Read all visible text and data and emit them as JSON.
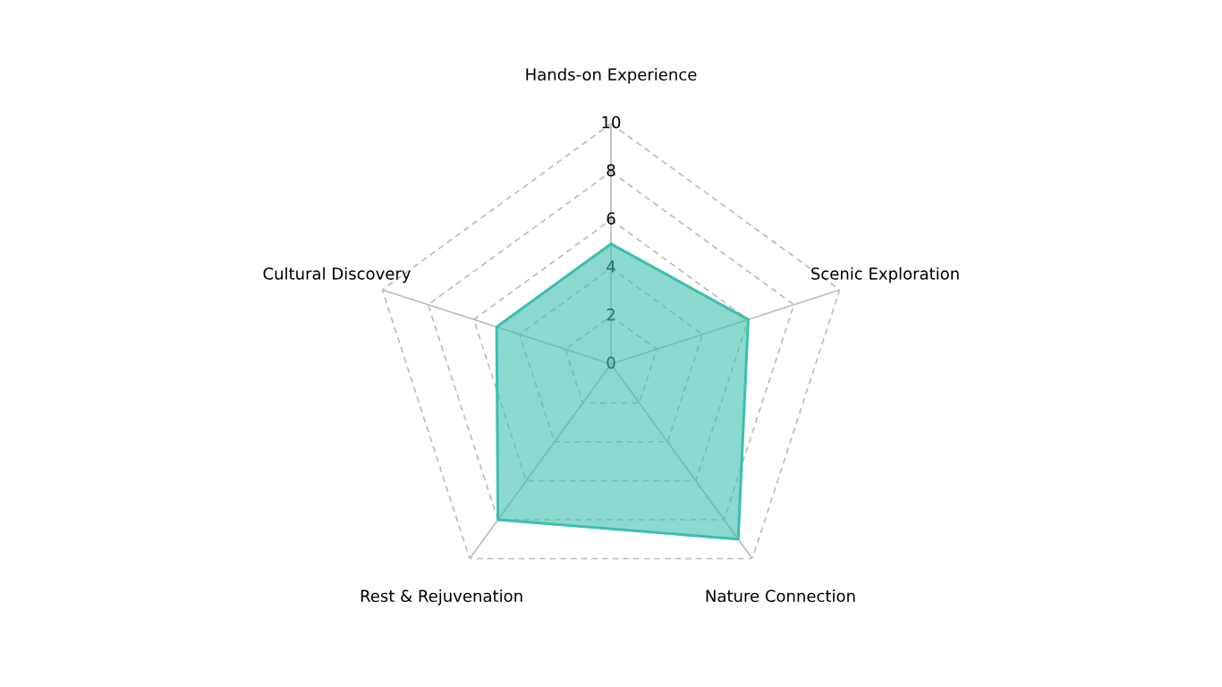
{
  "chart_data": {
    "type": "radar",
    "categories": [
      "Hands-on Experience",
      "Scenic Exploration",
      "Nature Connection",
      "Rest & Rejuvenation",
      "Cultural Discovery"
    ],
    "series": [
      {
        "color": "#3dbfad",
        "values": [
          5,
          6,
          9,
          8,
          5
        ]
      }
    ],
    "ylim": [
      0,
      10
    ],
    "yticks": [
      0,
      2,
      4,
      6,
      8,
      10
    ],
    "grid": true,
    "line_style": "solid",
    "marker": "none"
  }
}
